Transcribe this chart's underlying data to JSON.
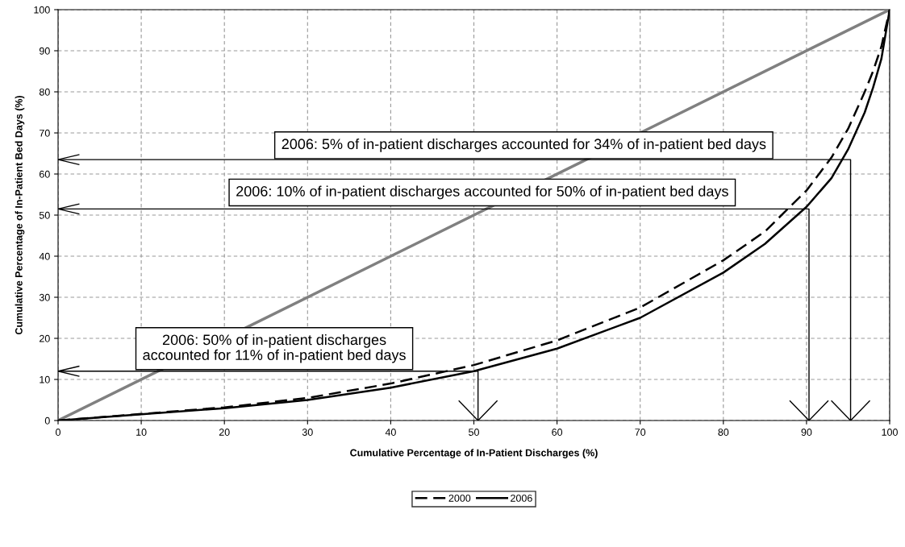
{
  "chart_data": {
    "type": "line",
    "xlabel": "Cumulative Percentage of In-Patient Discharges (%)",
    "ylabel": "Cumulative Percentage of In-Patient Bed Days (%)",
    "xlim": [
      0,
      100
    ],
    "ylim": [
      0,
      100
    ],
    "xticks": [
      0,
      10,
      20,
      30,
      40,
      50,
      60,
      70,
      80,
      90,
      100
    ],
    "yticks": [
      0,
      10,
      20,
      30,
      40,
      50,
      60,
      70,
      80,
      90,
      100
    ],
    "grid": true,
    "legend": "bottom",
    "marker": "none",
    "series": [
      {
        "color": "#808080",
        "line_style": "solid",
        "x": [
          0,
          100
        ],
        "values": [
          0,
          100
        ]
      },
      {
        "name": "2000",
        "color": "#000000",
        "line_style": "dashed",
        "x": [
          0,
          10,
          20,
          30,
          40,
          50,
          60,
          70,
          80,
          85,
          90,
          93,
          95,
          97,
          98,
          99,
          100
        ],
        "values": [
          0,
          1.6,
          3.2,
          5.5,
          9,
          13.5,
          19.5,
          27.5,
          39,
          46,
          56,
          64,
          71,
          80,
          85,
          91,
          100
        ]
      },
      {
        "name": "2006",
        "color": "#000000",
        "line_style": "solid",
        "x": [
          0,
          10,
          20,
          30,
          40,
          50,
          60,
          70,
          80,
          85,
          90,
          93,
          95,
          97,
          98,
          99,
          100
        ],
        "values": [
          0,
          1.5,
          3,
          5,
          8,
          12,
          17.5,
          25,
          36,
          43,
          52,
          59,
          66,
          75,
          81,
          88,
          100
        ]
      },
      {
        "color": "#000000",
        "line_style": "solid",
        "x": [
          0,
          95.3,
          95.3
        ],
        "values": [
          63.5,
          63.5,
          0
        ]
      },
      {
        "color": "#000000",
        "line_style": "solid",
        "x": [
          0,
          90.3,
          90.3
        ],
        "values": [
          51.5,
          51.5,
          0
        ]
      },
      {
        "color": "#000000",
        "line_style": "solid",
        "x": [
          0,
          50.5,
          50.5
        ],
        "values": [
          12,
          12,
          0
        ]
      }
    ],
    "annotations": [
      "2006: 5% of in-patient discharges accounted for 34% of in-patient bed days",
      "2006: 10% of in-patient discharges accounted for 50% of in-patient bed days",
      "2006: 50% of in-patient discharges\naccounted for 11% of in-patient bed days"
    ]
  }
}
